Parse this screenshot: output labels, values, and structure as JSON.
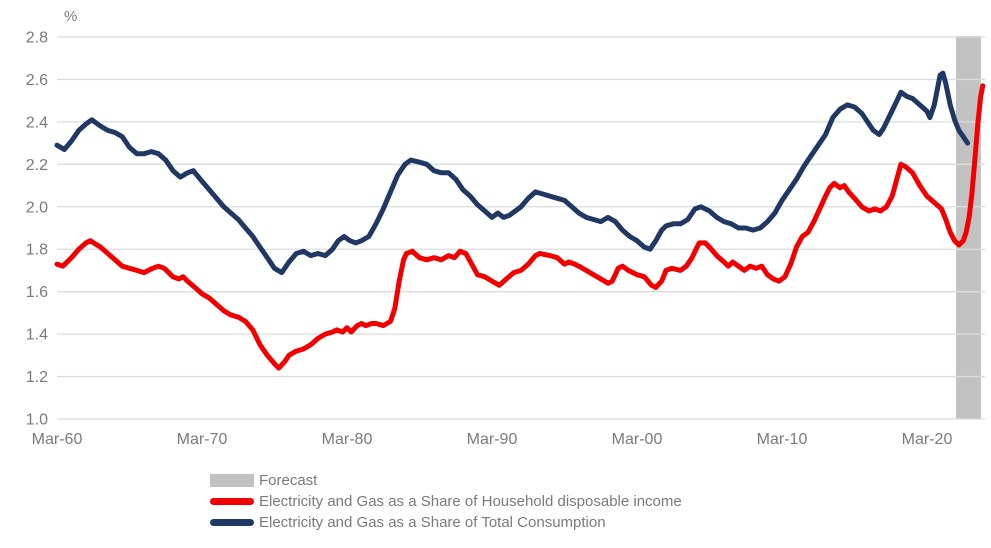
{
  "chart_data": {
    "type": "line",
    "unit_label": "%",
    "grid": true,
    "legend_position": "bottom",
    "colors": {
      "household_series": "#f20000",
      "total_consumption_series": "#1f3864",
      "forecast_band": "#c2c2c2",
      "gridline": "#dcdcdc",
      "axis_text": "#7a7a7a"
    },
    "ylim": [
      1.0,
      2.8
    ],
    "y_ticks": [
      2.8,
      2.6,
      2.4,
      2.2,
      2.0,
      1.8,
      1.6,
      1.4,
      1.2,
      1.0
    ],
    "x_domain": [
      1960,
      2024
    ],
    "x_tick_years": [
      1960,
      1970,
      1980,
      1990,
      2000,
      2010,
      2020
    ],
    "x_tick_labels": [
      "Mar-60",
      "Mar-70",
      "Mar-80",
      "Mar-90",
      "Mar-00",
      "Mar-10",
      "Mar-20"
    ],
    "forecast_band": {
      "label": "Forecast",
      "start_year": 2022.0,
      "end_year": 2023.72
    },
    "series": [
      {
        "name": "Electricity and Gas as a Share of Total Consumption",
        "color_key": "total_consumption_series",
        "points": [
          [
            1960,
            2.29
          ],
          [
            1960.5,
            2.27
          ],
          [
            1961,
            2.31
          ],
          [
            1961.5,
            2.36
          ],
          [
            1962,
            2.39
          ],
          [
            1962.4,
            2.41
          ],
          [
            1963,
            2.38
          ],
          [
            1963.5,
            2.36
          ],
          [
            1964,
            2.35
          ],
          [
            1964.5,
            2.33
          ],
          [
            1965,
            2.28
          ],
          [
            1965.5,
            2.25
          ],
          [
            1966,
            2.25
          ],
          [
            1966.5,
            2.26
          ],
          [
            1967,
            2.25
          ],
          [
            1967.5,
            2.22
          ],
          [
            1968,
            2.17
          ],
          [
            1968.5,
            2.14
          ],
          [
            1969,
            2.16
          ],
          [
            1969.4,
            2.17
          ],
          [
            1970,
            2.12
          ],
          [
            1970.5,
            2.08
          ],
          [
            1971,
            2.04
          ],
          [
            1971.5,
            2.0
          ],
          [
            1972,
            1.97
          ],
          [
            1972.5,
            1.94
          ],
          [
            1973,
            1.9
          ],
          [
            1973.5,
            1.86
          ],
          [
            1974,
            1.81
          ],
          [
            1974.5,
            1.76
          ],
          [
            1975,
            1.71
          ],
          [
            1975.5,
            1.69
          ],
          [
            1976,
            1.74
          ],
          [
            1976.5,
            1.78
          ],
          [
            1977,
            1.79
          ],
          [
            1977.5,
            1.77
          ],
          [
            1978,
            1.78
          ],
          [
            1978.5,
            1.77
          ],
          [
            1979,
            1.8
          ],
          [
            1979.4,
            1.84
          ],
          [
            1979.8,
            1.86
          ],
          [
            1980.2,
            1.84
          ],
          [
            1980.6,
            1.83
          ],
          [
            1981,
            1.84
          ],
          [
            1981.5,
            1.86
          ],
          [
            1982,
            1.92
          ],
          [
            1982.5,
            1.99
          ],
          [
            1983,
            2.07
          ],
          [
            1983.5,
            2.15
          ],
          [
            1984,
            2.2
          ],
          [
            1984.4,
            2.22
          ],
          [
            1985,
            2.21
          ],
          [
            1985.5,
            2.2
          ],
          [
            1986,
            2.17
          ],
          [
            1986.5,
            2.16
          ],
          [
            1987,
            2.16
          ],
          [
            1987.5,
            2.13
          ],
          [
            1988,
            2.08
          ],
          [
            1988.5,
            2.05
          ],
          [
            1989,
            2.01
          ],
          [
            1989.5,
            1.98
          ],
          [
            1990,
            1.95
          ],
          [
            1990.4,
            1.97
          ],
          [
            1990.8,
            1.95
          ],
          [
            1991.2,
            1.96
          ],
          [
            1992,
            2.0
          ],
          [
            1992.5,
            2.04
          ],
          [
            1993,
            2.07
          ],
          [
            1993.5,
            2.06
          ],
          [
            1994,
            2.05
          ],
          [
            1994.5,
            2.04
          ],
          [
            1995,
            2.03
          ],
          [
            1995.5,
            2.0
          ],
          [
            1996,
            1.97
          ],
          [
            1996.5,
            1.95
          ],
          [
            1997,
            1.94
          ],
          [
            1997.5,
            1.93
          ],
          [
            1998,
            1.95
          ],
          [
            1998.5,
            1.93
          ],
          [
            1999,
            1.89
          ],
          [
            1999.5,
            1.86
          ],
          [
            2000,
            1.84
          ],
          [
            2000.5,
            1.81
          ],
          [
            2000.9,
            1.8
          ],
          [
            2001.3,
            1.84
          ],
          [
            2001.7,
            1.89
          ],
          [
            2002,
            1.91
          ],
          [
            2002.5,
            1.92
          ],
          [
            2003,
            1.92
          ],
          [
            2003.5,
            1.94
          ],
          [
            2004,
            1.99
          ],
          [
            2004.4,
            2.0
          ],
          [
            2005,
            1.98
          ],
          [
            2005.5,
            1.95
          ],
          [
            2006,
            1.93
          ],
          [
            2006.5,
            1.92
          ],
          [
            2007,
            1.9
          ],
          [
            2007.5,
            1.9
          ],
          [
            2008,
            1.89
          ],
          [
            2008.5,
            1.9
          ],
          [
            2009,
            1.93
          ],
          [
            2009.5,
            1.97
          ],
          [
            2010,
            2.03
          ],
          [
            2010.5,
            2.08
          ],
          [
            2011,
            2.13
          ],
          [
            2011.5,
            2.19
          ],
          [
            2012,
            2.24
          ],
          [
            2012.5,
            2.29
          ],
          [
            2013,
            2.34
          ],
          [
            2013.5,
            2.42
          ],
          [
            2014,
            2.46
          ],
          [
            2014.5,
            2.48
          ],
          [
            2015,
            2.47
          ],
          [
            2015.5,
            2.44
          ],
          [
            2016,
            2.39
          ],
          [
            2016.3,
            2.36
          ],
          [
            2016.7,
            2.34
          ],
          [
            2017,
            2.37
          ],
          [
            2017.5,
            2.44
          ],
          [
            2018,
            2.51
          ],
          [
            2018.2,
            2.54
          ],
          [
            2018.6,
            2.52
          ],
          [
            2019,
            2.51
          ],
          [
            2019.5,
            2.48
          ],
          [
            2020,
            2.45
          ],
          [
            2020.2,
            2.42
          ],
          [
            2020.5,
            2.48
          ],
          [
            2020.9,
            2.62
          ],
          [
            2021.1,
            2.63
          ],
          [
            2021.3,
            2.58
          ],
          [
            2021.6,
            2.48
          ],
          [
            2021.9,
            2.41
          ],
          [
            2022.2,
            2.36
          ],
          [
            2022.5,
            2.33
          ],
          [
            2022.8,
            2.3
          ]
        ]
      },
      {
        "name": "Electricity and Gas as a Share of Household disposable income",
        "color_key": "household_series",
        "points": [
          [
            1960,
            1.73
          ],
          [
            1960.4,
            1.72
          ],
          [
            1961,
            1.76
          ],
          [
            1961.5,
            1.8
          ],
          [
            1962,
            1.83
          ],
          [
            1962.3,
            1.84
          ],
          [
            1963,
            1.81
          ],
          [
            1963.5,
            1.78
          ],
          [
            1964,
            1.75
          ],
          [
            1964.5,
            1.72
          ],
          [
            1965,
            1.71
          ],
          [
            1965.5,
            1.7
          ],
          [
            1966,
            1.69
          ],
          [
            1966.6,
            1.71
          ],
          [
            1967,
            1.72
          ],
          [
            1967.4,
            1.71
          ],
          [
            1968,
            1.67
          ],
          [
            1968.4,
            1.66
          ],
          [
            1968.7,
            1.67
          ],
          [
            1969,
            1.65
          ],
          [
            1969.5,
            1.62
          ],
          [
            1970,
            1.59
          ],
          [
            1970.5,
            1.57
          ],
          [
            1971,
            1.54
          ],
          [
            1971.5,
            1.51
          ],
          [
            1972,
            1.49
          ],
          [
            1972.5,
            1.48
          ],
          [
            1973,
            1.46
          ],
          [
            1973.5,
            1.42
          ],
          [
            1974,
            1.35
          ],
          [
            1974.5,
            1.3
          ],
          [
            1975,
            1.26
          ],
          [
            1975.3,
            1.24
          ],
          [
            1975.7,
            1.27
          ],
          [
            1976,
            1.3
          ],
          [
            1976.5,
            1.32
          ],
          [
            1977,
            1.33
          ],
          [
            1977.5,
            1.35
          ],
          [
            1978,
            1.38
          ],
          [
            1978.5,
            1.4
          ],
          [
            1979,
            1.41
          ],
          [
            1979.3,
            1.42
          ],
          [
            1979.7,
            1.41
          ],
          [
            1980,
            1.43
          ],
          [
            1980.3,
            1.41
          ],
          [
            1980.7,
            1.44
          ],
          [
            1981,
            1.45
          ],
          [
            1981.3,
            1.44
          ],
          [
            1981.7,
            1.45
          ],
          [
            1982,
            1.45
          ],
          [
            1982.5,
            1.44
          ],
          [
            1983,
            1.46
          ],
          [
            1983.3,
            1.52
          ],
          [
            1983.6,
            1.65
          ],
          [
            1983.9,
            1.75
          ],
          [
            1984.1,
            1.78
          ],
          [
            1984.5,
            1.79
          ],
          [
            1985,
            1.76
          ],
          [
            1985.5,
            1.75
          ],
          [
            1986,
            1.76
          ],
          [
            1986.5,
            1.75
          ],
          [
            1987,
            1.77
          ],
          [
            1987.4,
            1.76
          ],
          [
            1987.8,
            1.79
          ],
          [
            1988.2,
            1.78
          ],
          [
            1988.6,
            1.73
          ],
          [
            1989,
            1.68
          ],
          [
            1989.5,
            1.67
          ],
          [
            1990,
            1.65
          ],
          [
            1990.5,
            1.63
          ],
          [
            1991,
            1.66
          ],
          [
            1991.5,
            1.69
          ],
          [
            1992,
            1.7
          ],
          [
            1992.5,
            1.73
          ],
          [
            1993,
            1.77
          ],
          [
            1993.3,
            1.78
          ],
          [
            1994,
            1.77
          ],
          [
            1994.5,
            1.76
          ],
          [
            1995,
            1.73
          ],
          [
            1995.3,
            1.74
          ],
          [
            1995.7,
            1.73
          ],
          [
            1996,
            1.72
          ],
          [
            1996.5,
            1.7
          ],
          [
            1997,
            1.68
          ],
          [
            1997.5,
            1.66
          ],
          [
            1998,
            1.64
          ],
          [
            1998.3,
            1.65
          ],
          [
            1998.7,
            1.71
          ],
          [
            1999,
            1.72
          ],
          [
            1999.4,
            1.7
          ],
          [
            2000,
            1.68
          ],
          [
            2000.5,
            1.67
          ],
          [
            2001,
            1.63
          ],
          [
            2001.3,
            1.62
          ],
          [
            2001.7,
            1.65
          ],
          [
            2002,
            1.7
          ],
          [
            2002.4,
            1.71
          ],
          [
            2003,
            1.7
          ],
          [
            2003.4,
            1.72
          ],
          [
            2003.8,
            1.76
          ],
          [
            2004,
            1.79
          ],
          [
            2004.3,
            1.83
          ],
          [
            2004.7,
            1.83
          ],
          [
            2005,
            1.81
          ],
          [
            2005.5,
            1.77
          ],
          [
            2006,
            1.74
          ],
          [
            2006.3,
            1.72
          ],
          [
            2006.6,
            1.74
          ],
          [
            2007,
            1.72
          ],
          [
            2007.4,
            1.7
          ],
          [
            2007.8,
            1.72
          ],
          [
            2008.2,
            1.71
          ],
          [
            2008.6,
            1.72
          ],
          [
            2009,
            1.68
          ],
          [
            2009.4,
            1.66
          ],
          [
            2009.8,
            1.65
          ],
          [
            2010.2,
            1.67
          ],
          [
            2010.6,
            1.73
          ],
          [
            2011,
            1.81
          ],
          [
            2011.4,
            1.86
          ],
          [
            2011.8,
            1.88
          ],
          [
            2012.2,
            1.93
          ],
          [
            2012.6,
            1.99
          ],
          [
            2013,
            2.05
          ],
          [
            2013.3,
            2.09
          ],
          [
            2013.6,
            2.11
          ],
          [
            2014,
            2.09
          ],
          [
            2014.3,
            2.1
          ],
          [
            2014.6,
            2.07
          ],
          [
            2015,
            2.04
          ],
          [
            2015.5,
            2.0
          ],
          [
            2016,
            1.98
          ],
          [
            2016.4,
            1.99
          ],
          [
            2016.8,
            1.98
          ],
          [
            2017.2,
            2.0
          ],
          [
            2017.6,
            2.05
          ],
          [
            2018,
            2.15
          ],
          [
            2018.2,
            2.2
          ],
          [
            2018.5,
            2.19
          ],
          [
            2019,
            2.16
          ],
          [
            2019.5,
            2.1
          ],
          [
            2020,
            2.05
          ],
          [
            2020.5,
            2.02
          ],
          [
            2021,
            1.99
          ],
          [
            2021.3,
            1.94
          ],
          [
            2021.6,
            1.88
          ],
          [
            2021.9,
            1.84
          ],
          [
            2022.2,
            1.82
          ],
          [
            2022.5,
            1.84
          ],
          [
            2022.7,
            1.88
          ],
          [
            2022.9,
            1.95
          ],
          [
            2023.1,
            2.06
          ],
          [
            2023.3,
            2.22
          ],
          [
            2023.5,
            2.39
          ],
          [
            2023.7,
            2.52
          ],
          [
            2023.85,
            2.57
          ]
        ]
      }
    ]
  }
}
